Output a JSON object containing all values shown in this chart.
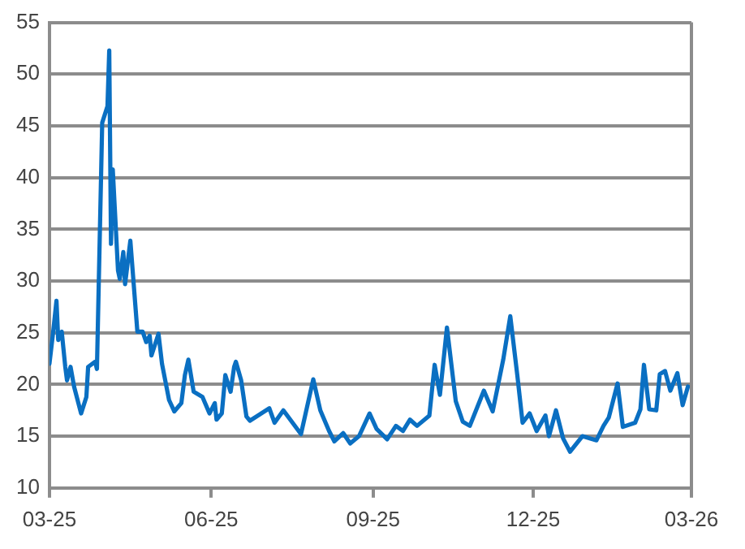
{
  "chart_data": {
    "type": "line",
    "color": "#0a6fc2",
    "x": [
      "2025-03-01",
      "2025-03-03",
      "2025-03-05",
      "2025-03-06",
      "2025-03-08",
      "2025-03-10",
      "2025-03-11",
      "2025-03-13",
      "2025-03-15",
      "2025-03-19",
      "2025-03-22",
      "2025-03-23",
      "2025-03-27",
      "2025-03-28",
      "2025-03-31",
      "2025-04-03",
      "2025-04-04",
      "2025-04-05",
      "2025-04-06",
      "2025-04-09",
      "2025-04-10",
      "2025-04-12",
      "2025-04-13",
      "2025-04-16",
      "2025-04-20",
      "2025-04-23",
      "2025-04-25",
      "2025-04-27",
      "2025-04-28",
      "2025-05-02",
      "2025-05-04",
      "2025-05-08",
      "2025-05-11",
      "2025-05-15",
      "2025-05-17",
      "2025-05-19",
      "2025-05-22",
      "2025-05-27",
      "2025-05-31",
      "2025-06-03",
      "2025-06-04",
      "2025-06-07",
      "2025-06-09",
      "2025-06-12",
      "2025-06-14",
      "2025-06-15",
      "2025-06-18",
      "2025-06-21",
      "2025-06-23",
      "2025-07-04",
      "2025-07-07",
      "2025-07-12",
      "2025-07-22",
      "2025-07-29",
      "2025-08-02",
      "2025-08-07",
      "2025-08-10",
      "2025-08-15",
      "2025-08-19",
      "2025-08-24",
      "2025-08-30",
      "2025-09-03",
      "2025-09-09",
      "2025-09-14",
      "2025-09-18",
      "2025-09-22",
      "2025-09-26",
      "2025-10-03",
      "2025-10-06",
      "2025-10-09",
      "2025-10-13",
      "2025-10-18",
      "2025-10-22",
      "2025-10-26",
      "2025-11-03",
      "2025-11-08",
      "2025-11-11",
      "2025-11-14",
      "2025-11-18",
      "2025-11-22",
      "2025-11-25",
      "2025-11-29",
      "2025-12-03",
      "2025-12-08",
      "2025-12-10",
      "2025-12-14",
      "2025-12-18",
      "2025-12-22",
      "2025-12-29",
      "2026-01-06",
      "2026-01-10",
      "2026-01-13",
      "2026-01-18",
      "2026-01-21",
      "2026-01-28",
      "2026-01-31",
      "2026-02-02",
      "2026-02-05",
      "2026-02-09",
      "2026-02-11",
      "2026-02-14",
      "2026-02-17",
      "2026-02-21",
      "2026-02-24",
      "2026-02-27"
    ],
    "values": [
      22.0,
      24.9,
      28.1,
      24.3,
      25.1,
      21.7,
      20.4,
      21.7,
      19.8,
      17.2,
      18.8,
      21.7,
      22.2,
      21.5,
      45.3,
      46.9,
      52.3,
      33.6,
      40.8,
      31.0,
      30.2,
      32.8,
      29.7,
      33.9,
      25.1,
      25.1,
      24.1,
      24.7,
      22.8,
      24.9,
      22.0,
      18.5,
      17.4,
      18.2,
      20.9,
      22.4,
      19.3,
      18.8,
      17.2,
      18.2,
      16.6,
      17.2,
      20.9,
      19.3,
      21.7,
      22.2,
      20.4,
      16.9,
      16.5,
      17.7,
      16.3,
      17.5,
      15.2,
      20.5,
      17.5,
      15.5,
      14.5,
      15.3,
      14.3,
      15.0,
      17.2,
      15.7,
      14.7,
      16.0,
      15.5,
      16.6,
      16.0,
      17.0,
      21.9,
      19.0,
      25.5,
      18.4,
      16.4,
      16.0,
      19.4,
      17.4,
      19.9,
      22.4,
      26.6,
      20.9,
      16.3,
      17.2,
      15.5,
      17.0,
      15.0,
      17.5,
      14.8,
      13.5,
      15.0,
      14.6,
      16.0,
      16.8,
      20.1,
      15.9,
      16.3,
      17.6,
      21.9,
      17.6,
      17.5,
      21.0,
      21.3,
      19.4,
      21.1,
      18.0,
      19.8
    ],
    "xlim": [
      "2025-03-01",
      "2026-03-01"
    ],
    "xticks": [
      {
        "value": "2025-03-01",
        "label": "03-25"
      },
      {
        "value": "2025-06-01",
        "label": "06-25"
      },
      {
        "value": "2025-09-01",
        "label": "09-25"
      },
      {
        "value": "2025-12-01",
        "label": "12-25"
      },
      {
        "value": "2026-03-01",
        "label": "03-26"
      }
    ],
    "ylim": [
      10,
      55
    ],
    "yticks": [
      10,
      15,
      20,
      25,
      30,
      35,
      40,
      45,
      50,
      55
    ],
    "grid": "y",
    "legend": false,
    "marker": "none",
    "line_style": "solid"
  }
}
